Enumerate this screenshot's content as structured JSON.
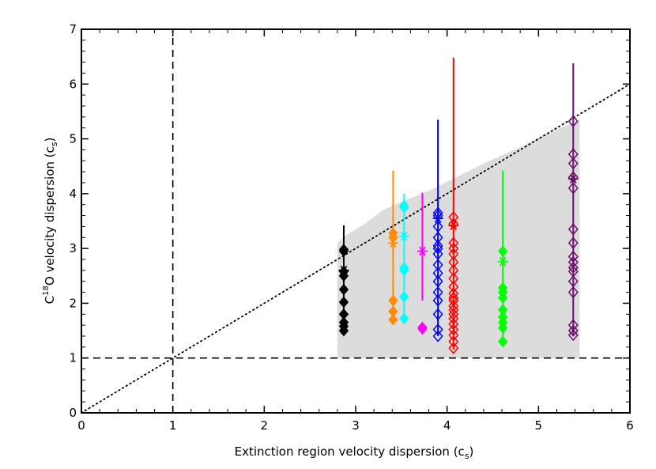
{
  "chart_data": {
    "type": "scatter",
    "xlabel_main": "Extinction region velocity dispersion (c",
    "xlabel_sub": "s",
    "xlabel_end": ")",
    "ylabel_pre": "C",
    "ylabel_sup": "18",
    "ylabel_main": "O velocity dispersion (c",
    "ylabel_sub": "s",
    "ylabel_end": ")",
    "xlim": [
      0,
      6
    ],
    "ylim": [
      0,
      7
    ],
    "xticks": [
      "0",
      "1",
      "2",
      "3",
      "4",
      "5",
      "6"
    ],
    "yticks": [
      "0",
      "1",
      "2",
      "3",
      "4",
      "5",
      "6",
      "7"
    ],
    "reference_lines": {
      "vertical_dashed_x": 1,
      "horizontal_dashed_y": 1,
      "dotted_one_to_one": [
        [
          0,
          0
        ],
        [
          6,
          6
        ]
      ]
    },
    "shaded_region": {
      "color": "#dcdcdc",
      "polygon": [
        [
          2.8,
          1.0
        ],
        [
          2.8,
          3.1
        ],
        [
          2.9,
          3.25
        ],
        [
          3.1,
          3.45
        ],
        [
          3.3,
          3.7
        ],
        [
          3.5,
          3.85
        ],
        [
          3.8,
          4.05
        ],
        [
          4.1,
          4.3
        ],
        [
          4.4,
          4.55
        ],
        [
          4.8,
          4.85
        ],
        [
          5.1,
          5.1
        ],
        [
          5.45,
          5.35
        ],
        [
          5.45,
          1.0
        ]
      ]
    },
    "series": [
      {
        "color": "#000000",
        "marker": "filled-diamond",
        "x": 2.87,
        "error_bar": [
          1.5,
          3.42
        ],
        "star_y": 2.6,
        "y": [
          1.5,
          1.58,
          1.65,
          1.8,
          2.02,
          2.25,
          2.5,
          2.58,
          2.95,
          2.98
        ]
      },
      {
        "color": "#ff8c00",
        "marker": "filled-diamond",
        "x": 3.41,
        "error_bar": [
          1.7,
          4.42
        ],
        "star_y": 3.1,
        "y": [
          1.7,
          1.85,
          2.05,
          3.2,
          3.28
        ]
      },
      {
        "color": "#00ffff",
        "marker": "filled-diamond",
        "x": 3.53,
        "error_bar": [
          1.72,
          4.0
        ],
        "star_y": 3.22,
        "y": [
          1.72,
          2.12,
          2.6,
          2.65,
          3.75,
          3.78
        ]
      },
      {
        "color": "#ff00ff",
        "marker": "filled-diamond",
        "x": 3.73,
        "error_bar": [
          2.05,
          4.02
        ],
        "star_y": 2.95,
        "y": [
          1.53,
          1.56
        ]
      },
      {
        "color": "#0000ff",
        "marker": "open-diamond",
        "x": 3.9,
        "error_bar": [
          1.4,
          5.35
        ],
        "star_y": 3.55,
        "y": [
          1.4,
          1.52,
          1.8,
          2.05,
          2.2,
          2.4,
          2.55,
          2.7,
          2.9,
          3.0,
          3.05,
          3.2,
          3.4,
          3.6,
          3.65
        ]
      },
      {
        "color": "#ff0000",
        "marker": "open-diamond",
        "x": 4.07,
        "error_bar": [
          1.15,
          6.48
        ],
        "star_y": 3.42,
        "y": [
          1.18,
          1.3,
          1.42,
          1.52,
          1.62,
          1.72,
          1.8,
          1.88,
          1.95,
          2.05,
          2.1,
          2.18,
          2.3,
          2.45,
          2.6,
          2.75,
          2.9,
          3.0,
          3.1,
          3.45,
          3.57
        ]
      },
      {
        "color": "#00ff00",
        "marker": "filled-diamond",
        "x": 4.61,
        "error_bar": [
          1.3,
          4.42
        ],
        "star_y": 2.76,
        "y": [
          1.3,
          1.55,
          1.65,
          1.75,
          1.88,
          2.1,
          2.2,
          2.28,
          2.95
        ]
      },
      {
        "color": "#6a0f6a",
        "marker": "open-diamond",
        "x": 5.38,
        "error_bar": [
          1.4,
          6.38
        ],
        "star_y": 4.27,
        "y": [
          1.42,
          1.5,
          1.6,
          2.2,
          2.4,
          2.58,
          2.65,
          2.75,
          2.85,
          3.1,
          3.35,
          4.1,
          4.3,
          4.55,
          4.72,
          5.32
        ]
      }
    ]
  }
}
